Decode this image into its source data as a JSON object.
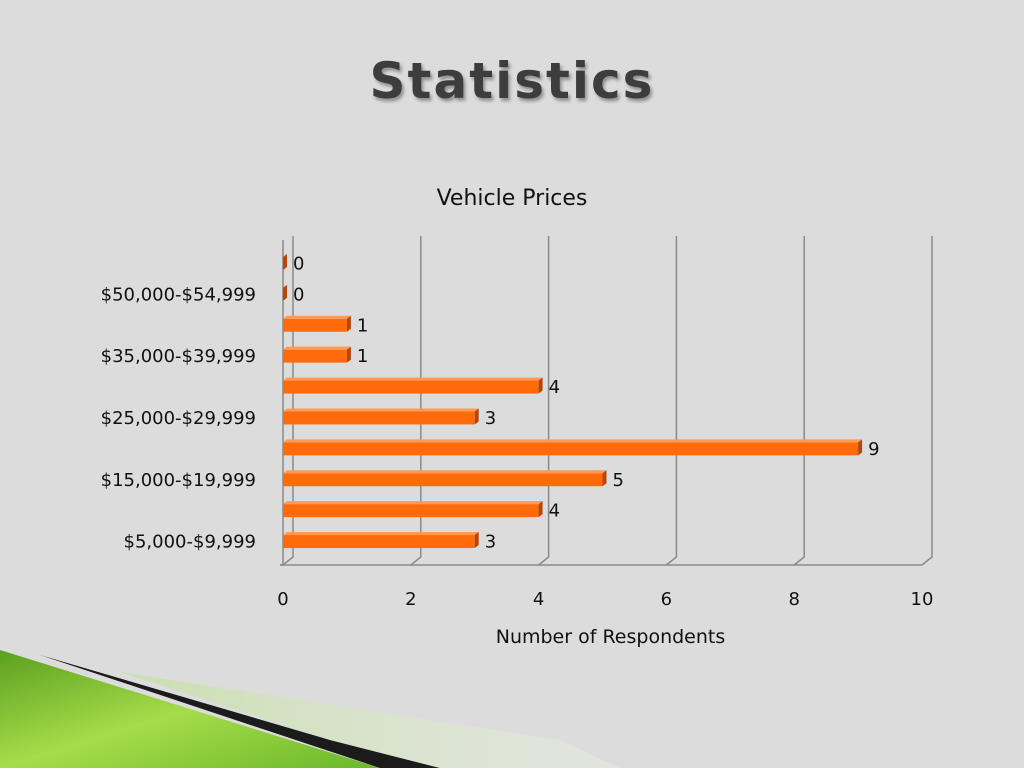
{
  "slide": {
    "title": "Statistics"
  },
  "colors": {
    "bar_front": "#ff6a0a",
    "bar_top": "#ff9a55",
    "bar_side": "#b8460a",
    "grid": "#8a8a8a",
    "background": "#dcdcdc",
    "accent_green": "#8cc63f"
  },
  "chart_data": {
    "type": "bar",
    "orientation": "horizontal",
    "style": "3d",
    "title": "Vehicle Prices",
    "xlabel": "Number of Respondents",
    "ylabel": "",
    "xlim": [
      0,
      10
    ],
    "xticks": [
      0,
      2,
      4,
      6,
      8,
      10
    ],
    "grid": true,
    "legend": "none",
    "categories": [
      "$5,000-$9,999",
      "",
      "$15,000-$19,999",
      "",
      "$25,000-$29,999",
      "",
      "$35,000-$39,999",
      "",
      "$50,000-$54,999",
      ""
    ],
    "values": [
      3,
      4,
      5,
      9,
      3,
      4,
      1,
      1,
      0,
      0
    ]
  }
}
